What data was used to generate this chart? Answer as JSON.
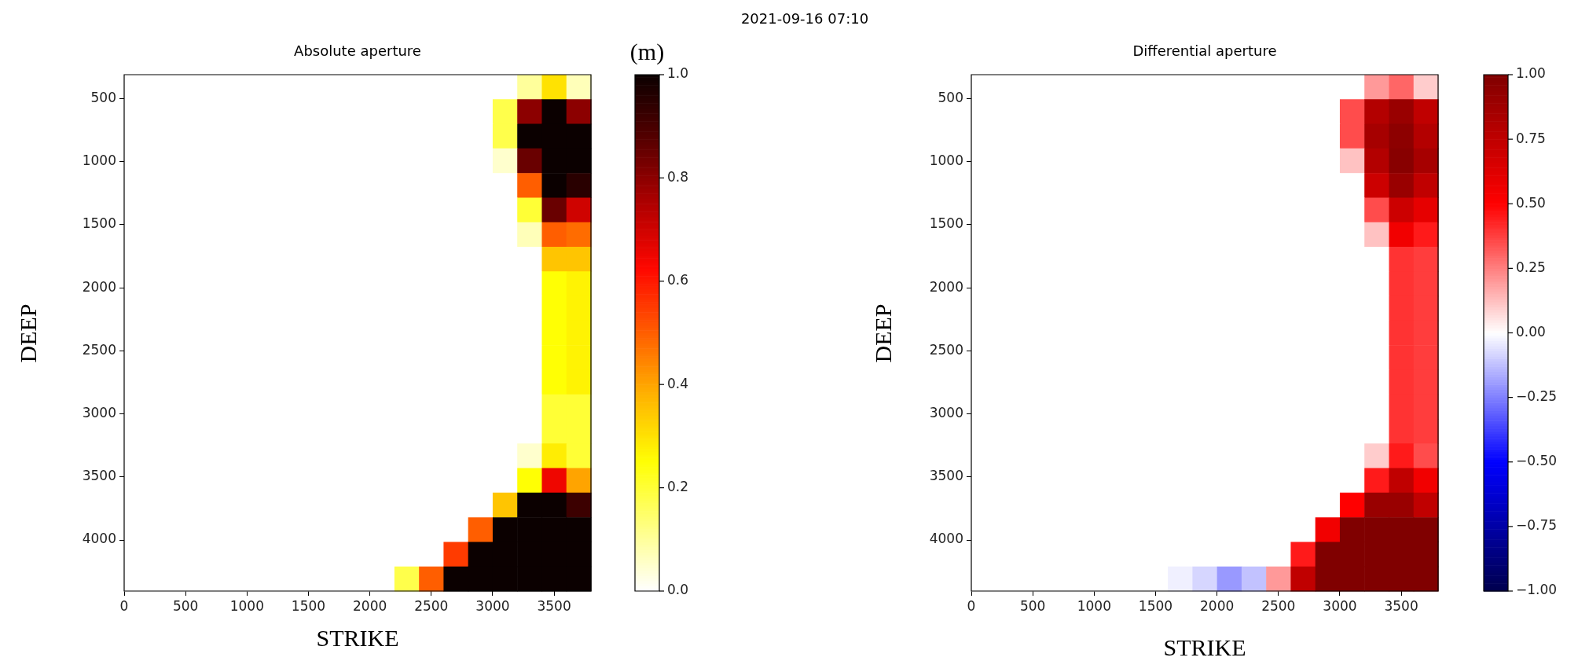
{
  "chart_data": [
    {
      "type": "heatmap",
      "title": "Absolute aperture",
      "xlabel": "STRIKE",
      "ylabel": "DEEP",
      "clabel": "(m)",
      "annotations": [
        "2021-09-16 07:10"
      ],
      "xlim": [
        0,
        3800
      ],
      "ylim": [
        4405,
        310
      ],
      "xticks": [
        0,
        500,
        1000,
        1500,
        2000,
        2500,
        3000,
        3500
      ],
      "yticks": [
        500,
        1000,
        1500,
        2000,
        2500,
        3000,
        3500,
        4000
      ],
      "clim": [
        0,
        1
      ],
      "cticks": [
        {
          "value": 0,
          "label": "0.0"
        },
        {
          "value": 0.2,
          "label": "0.2"
        },
        {
          "value": 0.4,
          "label": "0.4"
        },
        {
          "value": 0.6,
          "label": "0.6"
        },
        {
          "value": 0.8,
          "label": "0.8"
        },
        {
          "value": 1,
          "label": "1.0"
        }
      ],
      "colors": [
        "#ffffff",
        "#ffff82",
        "#ffff04",
        "#ffb600",
        "#ff5e00",
        "#ff0700",
        "#af0000",
        "#570000",
        "#0b0000"
      ],
      "cells": [
        [
          0,
          0,
          0,
          0,
          0,
          0,
          0,
          0,
          0,
          0,
          0,
          0,
          0,
          0,
          0,
          0,
          0.1,
          0.3,
          0.07
        ],
        [
          0,
          0,
          0,
          0,
          0,
          0,
          0,
          0,
          0,
          0,
          0,
          0,
          0,
          0,
          0,
          0.18,
          0.8,
          1,
          0.8
        ],
        [
          0,
          0,
          0,
          0,
          0,
          0,
          0,
          0,
          0,
          0,
          0,
          0,
          0,
          0,
          0,
          0.18,
          1,
          1,
          1
        ],
        [
          0,
          0,
          0,
          0,
          0,
          0,
          0,
          0,
          0,
          0,
          0,
          0,
          0,
          0,
          0,
          0.05,
          0.85,
          1,
          1
        ],
        [
          0,
          0,
          0,
          0,
          0,
          0,
          0,
          0,
          0,
          0,
          0,
          0,
          0,
          0,
          0,
          0,
          0.5,
          1,
          0.95
        ],
        [
          0,
          0,
          0,
          0,
          0,
          0,
          0,
          0,
          0,
          0,
          0,
          0,
          0,
          0,
          0,
          0,
          0.2,
          0.85,
          0.7
        ],
        [
          0,
          0,
          0,
          0,
          0,
          0,
          0,
          0,
          0,
          0,
          0,
          0,
          0,
          0,
          0,
          0,
          0.07,
          0.5,
          0.48
        ],
        [
          0,
          0,
          0,
          0,
          0,
          0,
          0,
          0,
          0,
          0,
          0,
          0,
          0,
          0,
          0,
          0,
          0,
          0.35,
          0.35
        ],
        [
          0,
          0,
          0,
          0,
          0,
          0,
          0,
          0,
          0,
          0,
          0,
          0,
          0,
          0,
          0,
          0,
          0,
          0.25,
          0.27
        ],
        [
          0,
          0,
          0,
          0,
          0,
          0,
          0,
          0,
          0,
          0,
          0,
          0,
          0,
          0,
          0,
          0,
          0,
          0.25,
          0.27
        ],
        [
          0,
          0,
          0,
          0,
          0,
          0,
          0,
          0,
          0,
          0,
          0,
          0,
          0,
          0,
          0,
          0,
          0,
          0.25,
          0.27
        ],
        [
          0,
          0,
          0,
          0,
          0,
          0,
          0,
          0,
          0,
          0,
          0,
          0,
          0,
          0,
          0,
          0,
          0,
          0.25,
          0.27
        ],
        [
          0,
          0,
          0,
          0,
          0,
          0,
          0,
          0,
          0,
          0,
          0,
          0,
          0,
          0,
          0,
          0,
          0,
          0.25,
          0.27
        ],
        [
          0,
          0,
          0,
          0,
          0,
          0,
          0,
          0,
          0,
          0,
          0,
          0,
          0,
          0,
          0,
          0,
          0,
          0.2,
          0.2
        ],
        [
          0,
          0,
          0,
          0,
          0,
          0,
          0,
          0,
          0,
          0,
          0,
          0,
          0,
          0,
          0,
          0,
          0,
          0.2,
          0.2
        ],
        [
          0,
          0,
          0,
          0,
          0,
          0,
          0,
          0,
          0,
          0,
          0,
          0,
          0,
          0,
          0,
          0,
          0.05,
          0.28,
          0.2
        ],
        [
          0,
          0,
          0,
          0,
          0,
          0,
          0,
          0,
          0,
          0,
          0,
          0,
          0,
          0,
          0,
          0,
          0.25,
          0.65,
          0.4
        ],
        [
          0,
          0,
          0,
          0,
          0,
          0,
          0,
          0,
          0,
          0,
          0,
          0,
          0,
          0,
          0,
          0.35,
          1,
          1,
          0.92
        ],
        [
          0,
          0,
          0,
          0,
          0,
          0,
          0,
          0,
          0,
          0,
          0,
          0,
          0,
          0,
          0.5,
          1,
          1,
          1,
          1
        ],
        [
          0,
          0,
          0,
          0,
          0,
          0,
          0,
          0,
          0,
          0,
          0,
          0,
          0,
          0.55,
          1,
          1,
          1,
          1,
          1
        ],
        [
          0,
          0,
          0,
          0,
          0,
          0,
          0,
          0,
          0,
          0,
          0,
          0.18,
          0.5,
          1,
          1,
          1,
          1,
          1,
          1
        ]
      ]
    },
    {
      "type": "heatmap",
      "title": "Differential aperture",
      "xlabel": "STRIKE",
      "ylabel": "DEEP",
      "xlim": [
        0,
        3800
      ],
      "ylim": [
        4405,
        310
      ],
      "xticks": [
        0,
        500,
        1000,
        1500,
        2000,
        2500,
        3000,
        3500
      ],
      "yticks": [
        500,
        1000,
        1500,
        2000,
        2500,
        3000,
        3500,
        4000
      ],
      "clim": [
        -1,
        1
      ],
      "cticks": [
        {
          "value": -1,
          "label": "−1.00"
        },
        {
          "value": -0.75,
          "label": "−0.75"
        },
        {
          "value": -0.5,
          "label": "−0.50"
        },
        {
          "value": -0.25,
          "label": "−0.25"
        },
        {
          "value": 0,
          "label": "0.00"
        },
        {
          "value": 0.25,
          "label": "0.25"
        },
        {
          "value": 0.5,
          "label": "0.50"
        },
        {
          "value": 0.75,
          "label": "0.75"
        },
        {
          "value": 1,
          "label": "1.00"
        }
      ],
      "colors": [
        "#00004d",
        "#0000ff",
        "#ffffff",
        "#ff0000",
        "#800000"
      ],
      "cells": [
        [
          0,
          0,
          0,
          0,
          0,
          0,
          0,
          0,
          0,
          0,
          0,
          0,
          0,
          0,
          0,
          0,
          0.2,
          0.3,
          0.1
        ],
        [
          0,
          0,
          0,
          0,
          0,
          0,
          0,
          0,
          0,
          0,
          0,
          0,
          0,
          0,
          0,
          0.35,
          0.8,
          0.9,
          0.75
        ],
        [
          0,
          0,
          0,
          0,
          0,
          0,
          0,
          0,
          0,
          0,
          0,
          0,
          0,
          0,
          0,
          0.35,
          0.85,
          0.95,
          0.8
        ],
        [
          0,
          0,
          0,
          0,
          0,
          0,
          0,
          0,
          0,
          0,
          0,
          0,
          0,
          0,
          0,
          0.12,
          0.8,
          0.97,
          0.85
        ],
        [
          0,
          0,
          0,
          0,
          0,
          0,
          0,
          0,
          0,
          0,
          0,
          0,
          0,
          0,
          0,
          0,
          0.7,
          0.9,
          0.75
        ],
        [
          0,
          0,
          0,
          0,
          0,
          0,
          0,
          0,
          0,
          0,
          0,
          0,
          0,
          0,
          0,
          0,
          0.35,
          0.7,
          0.6
        ],
        [
          0,
          0,
          0,
          0,
          0,
          0,
          0,
          0,
          0,
          0,
          0,
          0,
          0,
          0,
          0,
          0,
          0.12,
          0.55,
          0.45
        ],
        [
          0,
          0,
          0,
          0,
          0,
          0,
          0,
          0,
          0,
          0,
          0,
          0,
          0,
          0,
          0,
          0,
          0,
          0.4,
          0.38
        ],
        [
          0,
          0,
          0,
          0,
          0,
          0,
          0,
          0,
          0,
          0,
          0,
          0,
          0,
          0,
          0,
          0,
          0,
          0.4,
          0.38
        ],
        [
          0,
          0,
          0,
          0,
          0,
          0,
          0,
          0,
          0,
          0,
          0,
          0,
          0,
          0,
          0,
          0,
          0,
          0.4,
          0.38
        ],
        [
          0,
          0,
          0,
          0,
          0,
          0,
          0,
          0,
          0,
          0,
          0,
          0,
          0,
          0,
          0,
          0,
          0,
          0.4,
          0.38
        ],
        [
          0,
          0,
          0,
          0,
          0,
          0,
          0,
          0,
          0,
          0,
          0,
          0,
          0,
          0,
          0,
          0,
          0,
          0.4,
          0.38
        ],
        [
          0,
          0,
          0,
          0,
          0,
          0,
          0,
          0,
          0,
          0,
          0,
          0,
          0,
          0,
          0,
          0,
          0,
          0.4,
          0.38
        ],
        [
          0,
          0,
          0,
          0,
          0,
          0,
          0,
          0,
          0,
          0,
          0,
          0,
          0,
          0,
          0,
          0,
          0,
          0.4,
          0.38
        ],
        [
          0,
          0,
          0,
          0,
          0,
          0,
          0,
          0,
          0,
          0,
          0,
          0,
          0,
          0,
          0,
          0,
          0,
          0.4,
          0.38
        ],
        [
          0,
          0,
          0,
          0,
          0,
          0,
          0,
          0,
          0,
          0,
          0,
          0,
          0,
          0,
          0,
          0,
          0.1,
          0.45,
          0.35
        ],
        [
          0,
          0,
          0,
          0,
          0,
          0,
          0,
          0,
          0,
          0,
          0,
          0,
          0,
          0,
          0,
          0,
          0.45,
          0.75,
          0.55
        ],
        [
          0,
          0,
          0,
          0,
          0,
          0,
          0,
          0,
          0,
          0,
          0,
          0,
          0,
          0,
          0,
          0.5,
          0.9,
          0.9,
          0.75
        ],
        [
          0,
          0,
          0,
          0,
          0,
          0,
          0,
          0,
          0,
          0,
          0,
          0,
          0,
          0,
          0.55,
          1,
          1,
          1,
          1
        ],
        [
          0,
          0,
          0,
          0,
          0,
          0,
          0,
          0,
          0,
          0,
          0,
          0,
          0,
          0.45,
          1,
          1,
          1,
          1,
          1
        ],
        [
          0,
          0,
          0,
          0,
          0,
          0,
          0,
          0,
          -0.03,
          -0.08,
          -0.2,
          -0.12,
          0.2,
          0.75,
          1,
          1,
          1,
          1,
          1
        ]
      ]
    }
  ]
}
